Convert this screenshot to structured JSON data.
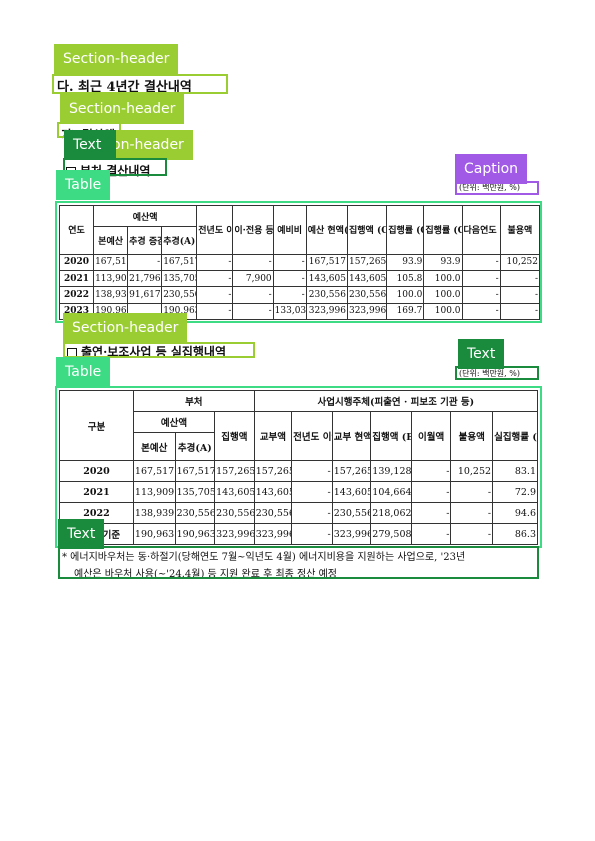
{
  "labels": {
    "section_header": "Section-header",
    "text": "Text",
    "table": "Table",
    "caption": "Caption"
  },
  "doc": {
    "heading_main": "다. 최근 4년간 결산내역",
    "heading_sub": "1) 결산액",
    "heading_sub_partial": "가) 결산액",
    "heading_sub_overlap": "on-header",
    "table1_title": "부처 결산내역",
    "table2_title": "출연·보조사업 등 실집행내역",
    "unit_caption": "(단위: 백만원, %)",
    "unit_text": "(단위: 백만원, %)",
    "note_line1": "* 에너지바우처는 동·하절기(당해연도 7월~익년도 4월) 에너지비용을 지원하는 사업으로, '23년",
    "note_line2": "예산은 바우처 사용(~'24.4월) 등 지원 완료 후 최종 정산 예정"
  },
  "table1": {
    "headers": {
      "year": "연도",
      "budget": "예산액",
      "main_budget": "본예산",
      "supp": "추경 증감액",
      "final": "추경(A)",
      "carry_in": "전년도 이월액",
      "transfer": "이·전용 등",
      "reserve": "예비비",
      "current": "예산 현액(B)",
      "exec": "집행액 (C)",
      "rate_ca": "집행률 (C/A)",
      "rate_cb": "집행률 (C/B)",
      "carry_out": "다음연도 이월액",
      "unused": "불용액"
    },
    "rows": [
      [
        "2020",
        "167,517",
        "-",
        "167,517",
        "-",
        "-",
        "-",
        "167,517",
        "157,265",
        "93.9",
        "93.9",
        "-",
        "10,252"
      ],
      [
        "2021",
        "113,909",
        "21,796",
        "135,705",
        "-",
        "7,900",
        "-",
        "143,605",
        "143,605",
        "105.8",
        "100.0",
        "-",
        "-"
      ],
      [
        "2022",
        "138,939",
        "91,617",
        "230,556",
        "-",
        "-",
        "-",
        "230,556",
        "230,556",
        "100.0",
        "100.0",
        "-",
        "-"
      ],
      [
        "2023",
        "190,963",
        "",
        "190,963",
        "-",
        "-",
        "133,033",
        "323,996",
        "323,996",
        "169.7",
        "100.0",
        "-",
        "-"
      ]
    ]
  },
  "table2": {
    "headers": {
      "group": "구분",
      "ministry": "부처",
      "agency": "사업시행주체(피출연 · 피보조 기관 등)",
      "budget": "예산액",
      "main_budget": "본예산",
      "final": "추경(A)",
      "exec": "집행액",
      "grant": "교부액",
      "carry_in": "전년도 이월액",
      "current": "교부 현액",
      "exec_b": "집행액 (B)",
      "carry_out": "이월액",
      "unused": "불용액",
      "real_rate": "실집행률 (B/A)"
    },
    "rows": [
      [
        "2020",
        "167,517",
        "167,517",
        "157,265",
        "157,265",
        "-",
        "157,265",
        "139,128",
        "-",
        "10,252",
        "83.1"
      ],
      [
        "2021",
        "113,909",
        "135,705",
        "143,605",
        "143,605",
        "-",
        "143,605",
        "104,664",
        "-",
        "-",
        "72.9"
      ],
      [
        "2022",
        "138,939",
        "230,556",
        "230,556",
        "230,556",
        "-",
        "230,556",
        "218,062",
        "-",
        "-",
        "94.6"
      ],
      [
        "2023 기준",
        "190,963",
        "190,963",
        "323,996",
        "323,996",
        "-",
        "323,996",
        "279,508",
        "-",
        "-",
        "86.3"
      ]
    ]
  }
}
